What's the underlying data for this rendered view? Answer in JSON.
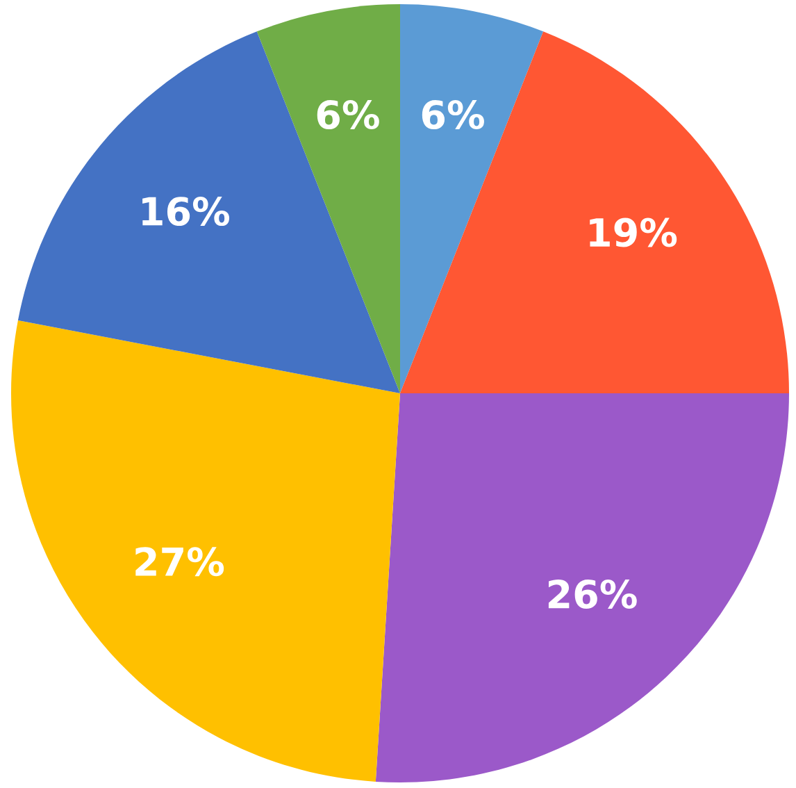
{
  "chart_data": {
    "type": "pie",
    "categories": [
      null,
      null,
      null,
      null,
      null,
      null
    ],
    "values": [
      6,
      19,
      26,
      27,
      16,
      6
    ],
    "colors": [
      "#5b9bd5",
      "#ff5733",
      "#9b59c9",
      "#ffc000",
      "#4472c4",
      "#70ad47"
    ],
    "value_labels": [
      "6%",
      "19%",
      "26%",
      "27%",
      "16%",
      "6%"
    ],
    "legend": false
  }
}
